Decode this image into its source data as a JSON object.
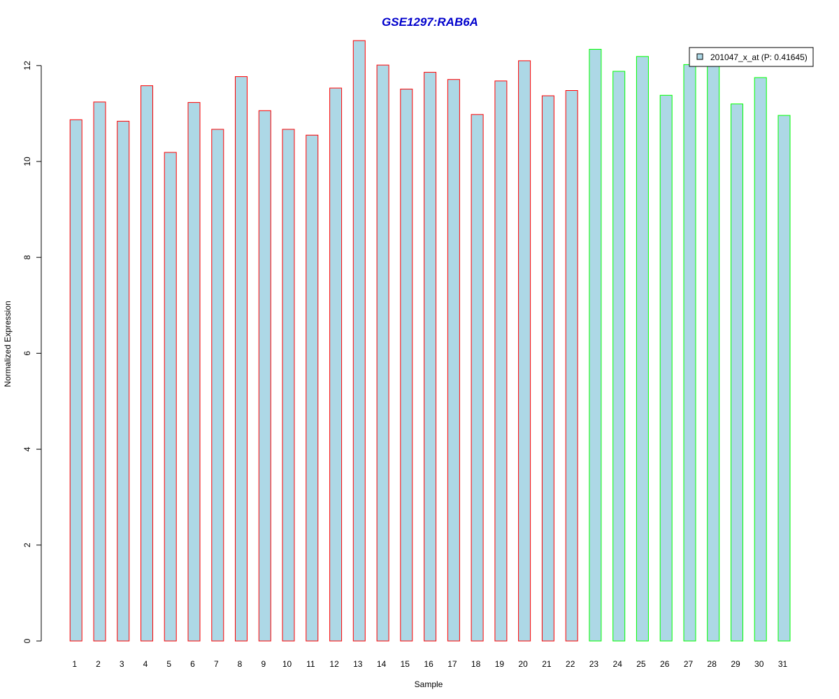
{
  "chart_data": {
    "type": "bar",
    "title": "GSE1297:RAB6A",
    "xlabel": "Sample",
    "ylabel": "Normalized Expression",
    "ylim": [
      0,
      12.5
    ],
    "yticks": [
      0,
      2,
      4,
      6,
      8,
      10,
      12
    ],
    "grid": false,
    "legend_position": "top-right",
    "categories": [
      "1",
      "2",
      "3",
      "4",
      "5",
      "6",
      "7",
      "8",
      "9",
      "10",
      "11",
      "12",
      "13",
      "14",
      "15",
      "16",
      "17",
      "18",
      "19",
      "20",
      "21",
      "22",
      "23",
      "24",
      "25",
      "26",
      "27",
      "28",
      "29",
      "30",
      "31"
    ],
    "series": [
      {
        "name": "201047_x_at (P: 0.41645)",
        "values": [
          10.87,
          11.24,
          10.84,
          11.58,
          10.19,
          11.23,
          10.67,
          11.77,
          11.06,
          10.67,
          10.55,
          11.53,
          12.52,
          12.01,
          11.51,
          11.86,
          11.71,
          10.98,
          11.68,
          12.1,
          11.37,
          11.48,
          12.34,
          11.88,
          12.19,
          11.38,
          12.02,
          12.0,
          11.2,
          11.75,
          10.96
        ]
      }
    ],
    "group_border_colors": [
      "#ff0000",
      "#ff0000",
      "#ff0000",
      "#ff0000",
      "#ff0000",
      "#ff0000",
      "#ff0000",
      "#ff0000",
      "#ff0000",
      "#ff0000",
      "#ff0000",
      "#ff0000",
      "#ff0000",
      "#ff0000",
      "#ff0000",
      "#ff0000",
      "#ff0000",
      "#ff0000",
      "#ff0000",
      "#ff0000",
      "#ff0000",
      "#ff0000",
      "#00ff00",
      "#00ff00",
      "#00ff00",
      "#00ff00",
      "#00ff00",
      "#00ff00",
      "#00ff00",
      "#00ff00",
      "#00ff00"
    ],
    "colors": {
      "bar_fill": "#add8e6",
      "title": "#0000cc",
      "axis": "#000000"
    }
  }
}
